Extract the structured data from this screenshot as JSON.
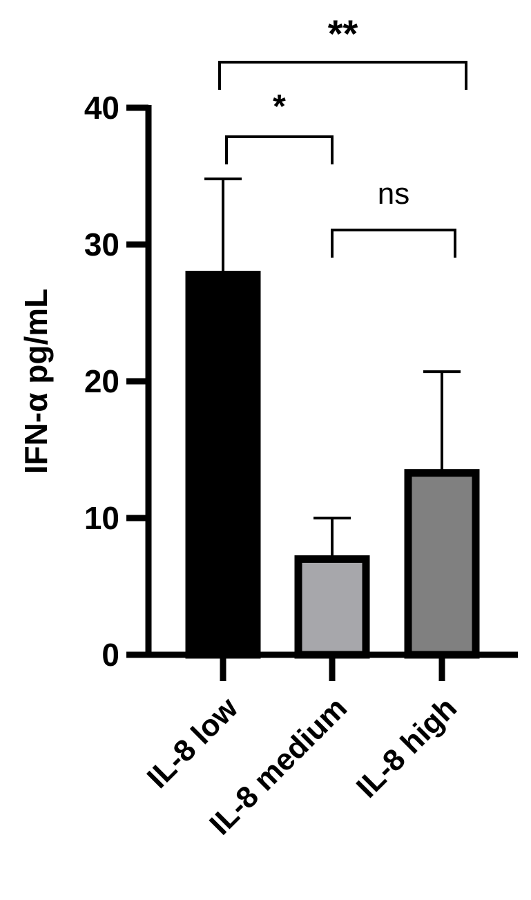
{
  "chart_data": {
    "type": "bar",
    "y_label": "IFN-α pg/mL",
    "categories": [
      "IL-8 low",
      "IL-8 medium",
      "IL-8 high"
    ],
    "values": [
      27.8,
      7.0,
      13.3
    ],
    "errors": [
      7.0,
      3.0,
      7.4
    ],
    "colors": [
      "#000000",
      "#a7a7ab",
      "#808080"
    ],
    "ylim": [
      0,
      40
    ],
    "yticks": [
      0,
      10,
      20,
      30,
      40
    ],
    "annotations": [
      {
        "label": "*",
        "groups": [
          0,
          1
        ]
      },
      {
        "label": "ns",
        "groups": [
          1,
          2
        ]
      },
      {
        "label": "**",
        "groups": [
          0,
          2
        ]
      }
    ]
  }
}
